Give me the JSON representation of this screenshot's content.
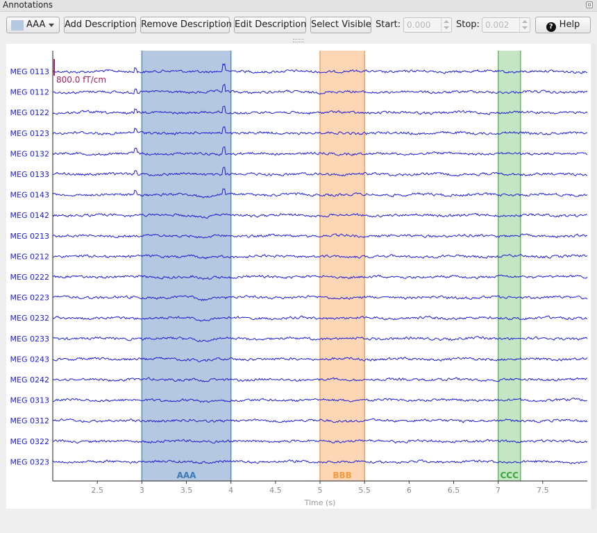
{
  "window": {
    "title": "Annotations"
  },
  "toolbar": {
    "selected_label": "AAA",
    "add_label": "Add Description",
    "remove_label": "Remove Description",
    "edit_label": "Edit Description",
    "select_visible_label": "Select Visible",
    "start_label": "Start:",
    "start_value": "0.000",
    "stop_label": "Stop:",
    "stop_value": "0.002",
    "help_label": "Help",
    "swatch_color": "#b4c8e1"
  },
  "plot": {
    "xlabel": "Time (s)",
    "xlim": [
      2.0,
      8.0
    ],
    "xticks": [
      "2.5",
      "3",
      "3.5",
      "4",
      "4.5",
      "5",
      "5.5",
      "6",
      "6.5",
      "7",
      "7.5"
    ],
    "xtick_values": [
      2.5,
      3.0,
      3.5,
      4.0,
      4.5,
      5.0,
      5.5,
      6.0,
      6.5,
      7.0,
      7.5
    ],
    "scale_label": "800.0 fT/cm",
    "trace_color": "#1a1ad6",
    "scale_color": "#a02060",
    "channels": [
      "MEG 0113",
      "MEG 0112",
      "MEG 0122",
      "MEG 0123",
      "MEG 0132",
      "MEG 0133",
      "MEG 0143",
      "MEG 0142",
      "MEG 0213",
      "MEG 0212",
      "MEG 0222",
      "MEG 0223",
      "MEG 0232",
      "MEG 0233",
      "MEG 0243",
      "MEG 0242",
      "MEG 0313",
      "MEG 0312",
      "MEG 0322",
      "MEG 0323"
    ],
    "annotations": [
      {
        "label": "AAA",
        "start": 3.0,
        "stop": 4.0,
        "fill": "#b4c8e1",
        "edge": "#5b8fbf",
        "text_color": "#3b7bb5"
      },
      {
        "label": "BBB",
        "start": 5.0,
        "stop": 5.5,
        "fill": "#fdd6b6",
        "edge": "#f3a35f",
        "text_color": "#f59a3d"
      },
      {
        "label": "CCC",
        "start": 7.0,
        "stop": 7.25,
        "fill": "#c4e6c4",
        "edge": "#66b866",
        "text_color": "#3aa53a"
      }
    ]
  }
}
